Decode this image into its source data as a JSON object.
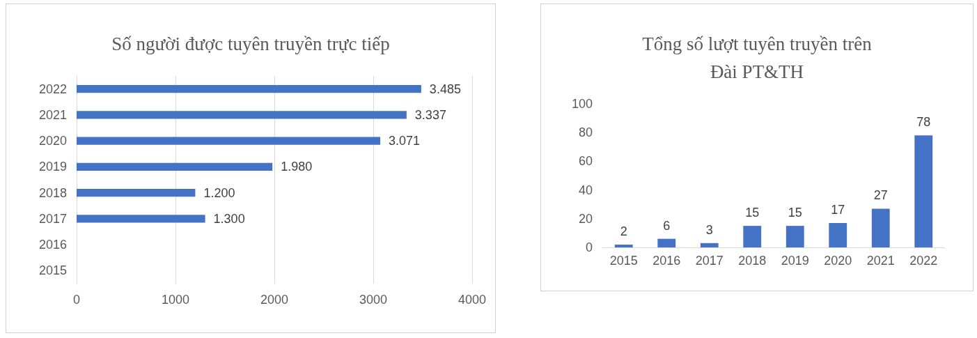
{
  "chart_data": [
    {
      "type": "bar",
      "title": "Số người được tuyên truyền trực tiếp",
      "orientation": "horizontal",
      "categories": [
        "2022",
        "2021",
        "2020",
        "2019",
        "2018",
        "2017",
        "2016",
        "2015"
      ],
      "values": [
        3485,
        3337,
        3071,
        1980,
        1200,
        1300,
        null,
        null
      ],
      "value_labels": [
        "3.485",
        "3.337",
        "3.071",
        "1.980",
        "1.200",
        "1.300",
        null,
        null
      ],
      "color": "#4472c4",
      "xlim": [
        0,
        4000
      ],
      "xticks": [
        0,
        1000,
        2000,
        3000,
        4000
      ],
      "grid": "x"
    },
    {
      "type": "bar",
      "title": "Tổng số lượt tuyên truyền trên\nĐài PT&TH",
      "categories": [
        "2015",
        "2016",
        "2017",
        "2018",
        "2019",
        "2020",
        "2021",
        "2022"
      ],
      "values": [
        2,
        6,
        3,
        15,
        15,
        17,
        27,
        78
      ],
      "color": "#4472c4",
      "ylim": [
        0,
        100
      ],
      "yticks": [
        0,
        20,
        40,
        60,
        80,
        100
      ],
      "data_labels": true
    }
  ]
}
